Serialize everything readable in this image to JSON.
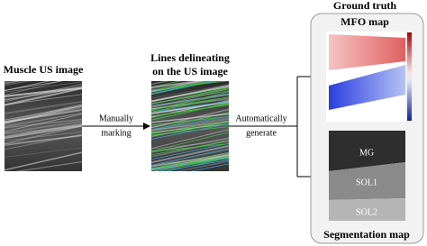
{
  "input": {
    "title": "Muscle US image"
  },
  "step1": {
    "label_lines": [
      "Manually",
      "marking"
    ]
  },
  "annotated": {
    "title_lines": [
      "Lines delineating",
      "on the US image"
    ]
  },
  "step2": {
    "label_lines": [
      "Automatically",
      "generate"
    ]
  },
  "ground_truth": {
    "title": "Ground truth",
    "mfo_map": "MFO map",
    "segmentation_map": "Segmentation map",
    "regions": [
      "MG",
      "SOL1",
      "SOL2"
    ]
  }
}
